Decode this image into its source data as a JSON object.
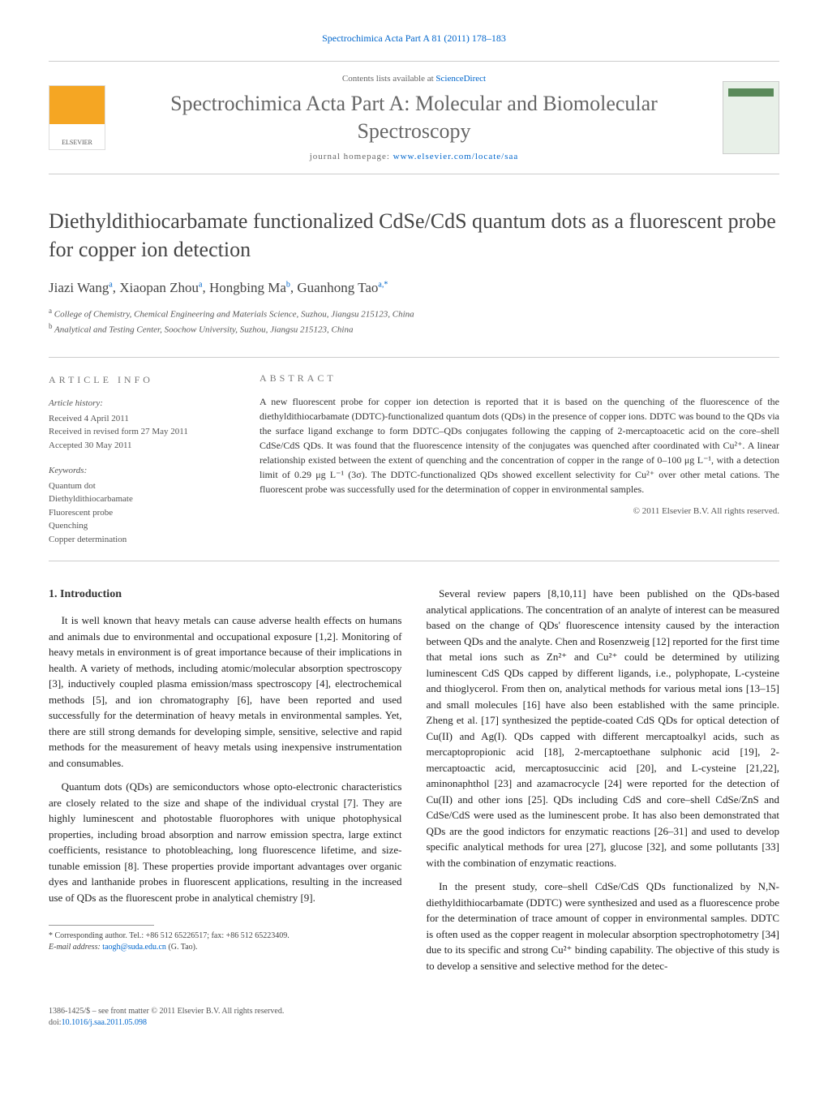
{
  "header": {
    "citation": "Spectrochimica Acta Part A 81 (2011) 178–183",
    "contents_line_prefix": "Contents lists available at ",
    "contents_link": "ScienceDirect",
    "journal_name": "Spectrochimica Acta Part A: Molecular and Biomolecular Spectroscopy",
    "homepage_prefix": "journal homepage: ",
    "homepage_url": "www.elsevier.com/locate/saa"
  },
  "colors": {
    "link": "#0066cc",
    "text": "#333333",
    "muted": "#666666",
    "border": "#cccccc"
  },
  "title": "Diethyldithiocarbamate functionalized CdSe/CdS quantum dots as a fluorescent probe for copper ion detection",
  "authors_html": "Jiazi Wang<sup>a</sup>, Xiaopan Zhou<sup>a</sup>, Hongbing Ma<sup>b</sup>, Guanhong Tao<sup>a,*</sup>",
  "affiliations": [
    "a College of Chemistry, Chemical Engineering and Materials Science, Suzhou, Jiangsu 215123, China",
    "b Analytical and Testing Center, Soochow University, Suzhou, Jiangsu 215123, China"
  ],
  "info": {
    "heading_left": "ARTICLE INFO",
    "heading_right": "ABSTRACT",
    "history_label": "Article history:",
    "history": [
      "Received 4 April 2011",
      "Received in revised form 27 May 2011",
      "Accepted 30 May 2011"
    ],
    "keywords_label": "Keywords:",
    "keywords": [
      "Quantum dot",
      "Diethyldithiocarbamate",
      "Fluorescent probe",
      "Quenching",
      "Copper determination"
    ]
  },
  "abstract": "A new fluorescent probe for copper ion detection is reported that it is based on the quenching of the fluorescence of the diethyldithiocarbamate (DDTC)-functionalized quantum dots (QDs) in the presence of copper ions. DDTC was bound to the QDs via the surface ligand exchange to form DDTC–QDs conjugates following the capping of 2-mercaptoacetic acid on the core–shell CdSe/CdS QDs. It was found that the fluorescence intensity of the conjugates was quenched after coordinated with Cu²⁺. A linear relationship existed between the extent of quenching and the concentration of copper in the range of 0–100 μg L⁻¹, with a detection limit of 0.29 μg L⁻¹ (3σ). The DDTC-functionalized QDs showed excellent selectivity for Cu²⁺ over other metal cations. The fluorescent probe was successfully used for the determination of copper in environmental samples.",
  "copyright": "© 2011 Elsevier B.V. All rights reserved.",
  "body": {
    "section_heading": "1. Introduction",
    "left": [
      "It is well known that heavy metals can cause adverse health effects on humans and animals due to environmental and occupational exposure [1,2]. Monitoring of heavy metals in environment is of great importance because of their implications in health. A variety of methods, including atomic/molecular absorption spectroscopy [3], inductively coupled plasma emission/mass spectroscopy [4], electrochemical methods [5], and ion chromatography [6], have been reported and used successfully for the determination of heavy metals in environmental samples. Yet, there are still strong demands for developing simple, sensitive, selective and rapid methods for the measurement of heavy metals using inexpensive instrumentation and consumables.",
      "Quantum dots (QDs) are semiconductors whose opto-electronic characteristics are closely related to the size and shape of the individual crystal [7]. They are highly luminescent and photostable fluorophores with unique photophysical properties, including broad absorption and narrow emission spectra, large extinct coefficients, resistance to photobleaching, long fluorescence lifetime, and size-tunable emission [8]. These properties provide important advantages over organic dyes and lanthanide probes in fluorescent applications, resulting in the increased use of QDs as the fluorescent probe in analytical chemistry [9]."
    ],
    "right": [
      "Several review papers [8,10,11] have been published on the QDs-based analytical applications. The concentration of an analyte of interest can be measured based on the change of QDs' fluorescence intensity caused by the interaction between QDs and the analyte. Chen and Rosenzweig [12] reported for the first time that metal ions such as Zn²⁺ and Cu²⁺ could be determined by utilizing luminescent CdS QDs capped by different ligands, i.e., polyphopate, L-cysteine and thioglycerol. From then on, analytical methods for various metal ions [13–15] and small molecules [16] have also been established with the same principle. Zheng et al. [17] synthesized the peptide-coated CdS QDs for optical detection of Cu(II) and Ag(I). QDs capped with different mercaptoalkyl acids, such as mercaptopropionic acid [18], 2-mercaptoethane sulphonic acid [19], 2-mercaptoactic acid, mercaptosuccinic acid [20], and L-cysteine [21,22], aminonaphthol [23] and azamacrocycle [24] were reported for the detection of Cu(II) and other ions [25]. QDs including CdS and core–shell CdSe/ZnS and CdSe/CdS were used as the luminescent probe. It has also been demonstrated that QDs are the good indictors for enzymatic reactions [26–31] and used to develop specific analytical methods for urea [27], glucose [32], and some pollutants [33] with the combination of enzymatic reactions.",
      "In the present study, core–shell CdSe/CdS QDs functionalized by N,N-diethyldithiocarbamate (DDTC) were synthesized and used as a fluorescence probe for the determination of trace amount of copper in environmental samples. DDTC is often used as the copper reagent in molecular absorption spectrophotometry [34] due to its specific and strong Cu²⁺ binding capability. The objective of this study is to develop a sensitive and selective method for the detec-"
    ]
  },
  "footnote": {
    "corresponding": "* Corresponding author. Tel.: +86 512 65226517; fax: +86 512 65223409.",
    "email_label": "E-mail address: ",
    "email": "taogh@suda.edu.cn",
    "email_suffix": " (G. Tao)."
  },
  "footer": {
    "line1": "1386-1425/$ – see front matter © 2011 Elsevier B.V. All rights reserved.",
    "doi_prefix": "doi:",
    "doi": "10.1016/j.saa.2011.05.098"
  }
}
